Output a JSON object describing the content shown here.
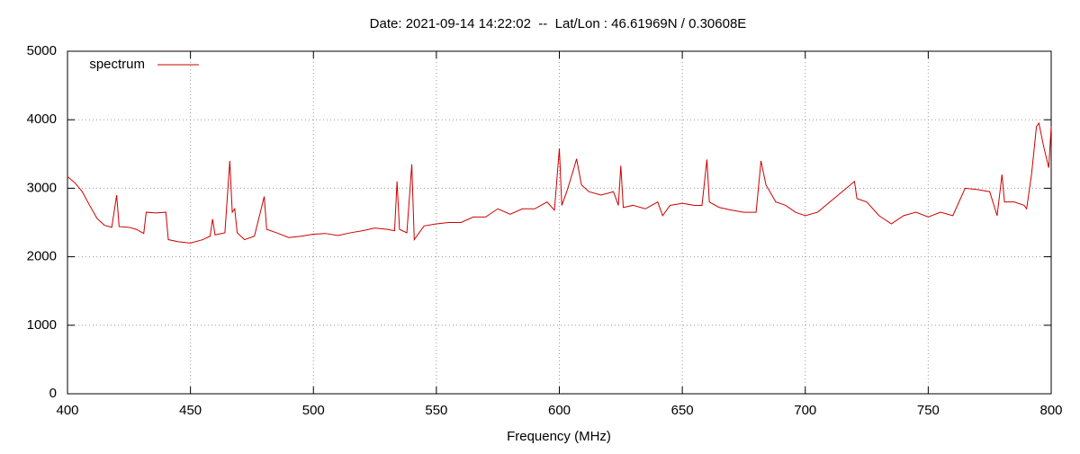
{
  "chart_data": {
    "type": "line",
    "title": "Date: 2021-09-14 14:22:02  --  Lat/Lon : 46.61969N / 0.30608E",
    "xlabel": "Frequency (MHz)",
    "xlim": [
      400,
      800
    ],
    "ylim": [
      0,
      5000
    ],
    "xticks": [
      400,
      450,
      500,
      550,
      600,
      650,
      700,
      750,
      800
    ],
    "yticks": [
      0,
      1000,
      2000,
      3000,
      4000,
      5000
    ],
    "grid": true,
    "legend": "upper left",
    "x": [
      400,
      403,
      406,
      409,
      412,
      415,
      418,
      420,
      421,
      425,
      428,
      431,
      432,
      436,
      440,
      441,
      445,
      450,
      455,
      458,
      459,
      460,
      464,
      466,
      467,
      468,
      469,
      472,
      476,
      480,
      481,
      485,
      490,
      495,
      500,
      505,
      510,
      515,
      520,
      525,
      530,
      533,
      534,
      535,
      538,
      540,
      541,
      545,
      550,
      555,
      560,
      565,
      570,
      575,
      580,
      585,
      590,
      595,
      598,
      600,
      601,
      603,
      606,
      607,
      609,
      612,
      617,
      622,
      624,
      625,
      626,
      630,
      635,
      640,
      642,
      645,
      650,
      655,
      658,
      660,
      661,
      665,
      670,
      675,
      680,
      682,
      684,
      688,
      692,
      696,
      700,
      705,
      710,
      715,
      720,
      721,
      725,
      730,
      735,
      740,
      745,
      750,
      755,
      760,
      765,
      770,
      775,
      778,
      780,
      781,
      785,
      789,
      790,
      792,
      794,
      795,
      797,
      799,
      800
    ],
    "series": [
      {
        "name": "spectrum",
        "color": "#cc0000",
        "values": [
          3170,
          3080,
          2950,
          2750,
          2560,
          2460,
          2430,
          2900,
          2440,
          2430,
          2400,
          2340,
          2650,
          2640,
          2650,
          2250,
          2220,
          2200,
          2250,
          2300,
          2550,
          2320,
          2350,
          3400,
          2650,
          2700,
          2350,
          2250,
          2300,
          2880,
          2400,
          2350,
          2280,
          2300,
          2330,
          2340,
          2310,
          2350,
          2380,
          2420,
          2400,
          2380,
          3100,
          2400,
          2350,
          3350,
          2250,
          2450,
          2480,
          2500,
          2500,
          2580,
          2580,
          2700,
          2620,
          2700,
          2700,
          2800,
          2680,
          3580,
          2750,
          2950,
          3300,
          3430,
          3050,
          2950,
          2900,
          2950,
          2750,
          3330,
          2720,
          2750,
          2700,
          2800,
          2600,
          2750,
          2780,
          2750,
          2750,
          3420,
          2800,
          2720,
          2680,
          2650,
          2650,
          3400,
          3050,
          2800,
          2750,
          2650,
          2600,
          2650,
          2800,
          2950,
          3100,
          2850,
          2800,
          2600,
          2480,
          2600,
          2650,
          2580,
          2650,
          2600,
          3000,
          2980,
          2950,
          2600,
          3200,
          2800,
          2800,
          2750,
          2700,
          3200,
          3900,
          3950,
          3600,
          3300,
          3900
        ]
      }
    ]
  }
}
